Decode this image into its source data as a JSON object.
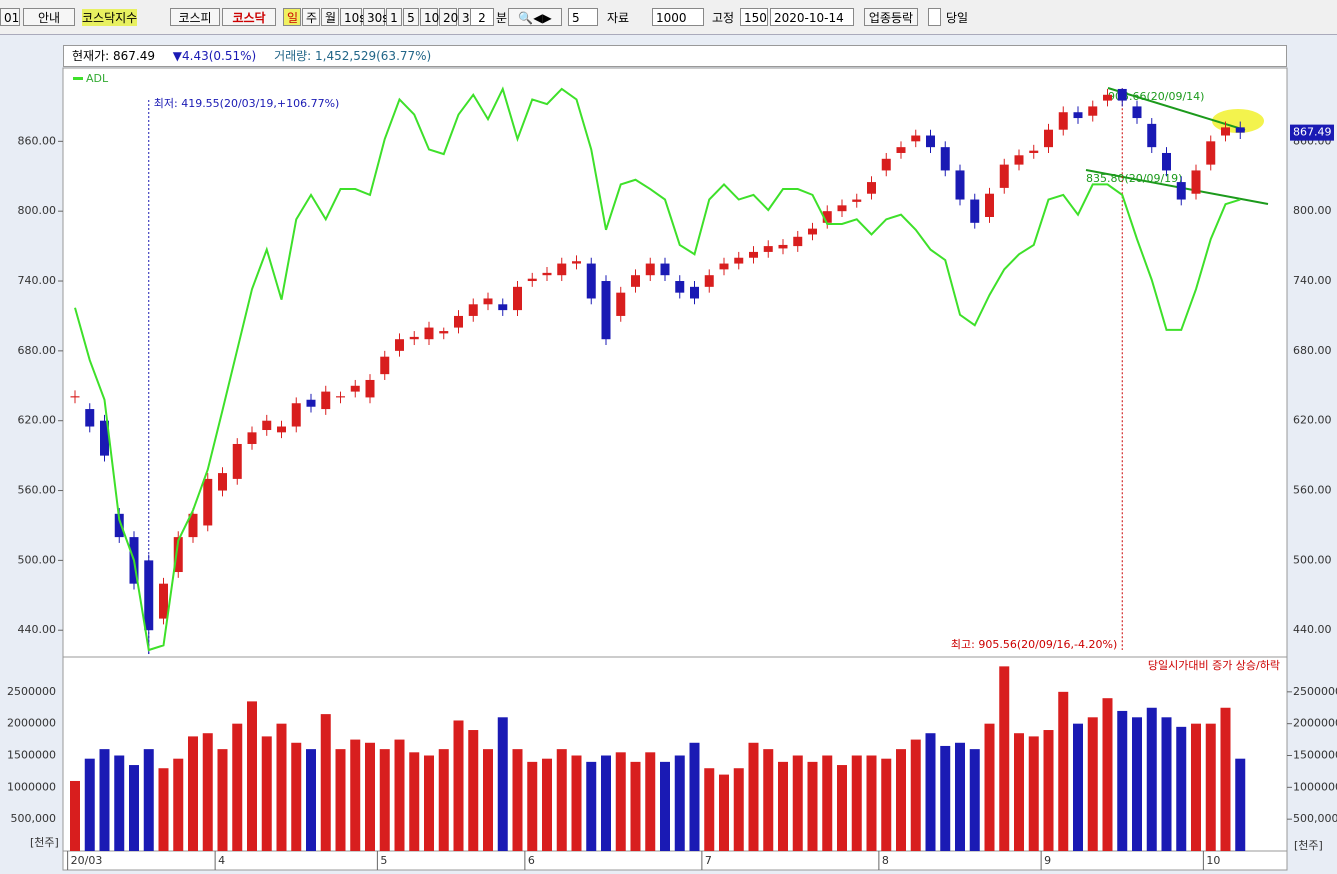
{
  "toolbar": {
    "code": "01",
    "guide": "안내",
    "index_name": "코스닥지수",
    "tabs": [
      "코스피",
      "코스닥"
    ],
    "periods": [
      "일",
      "주",
      "월",
      "10s",
      "30s",
      "1",
      "5",
      "10",
      "20",
      "30"
    ],
    "minute_value": "2",
    "minute_unit": "분",
    "count_value": "5",
    "data_label": "자료",
    "data_value": "1000",
    "fixed_label": "고정",
    "fixed_value": "150",
    "date": "2020-10-14",
    "sector_button": "업종등락",
    "today_label": "당일"
  },
  "header": {
    "price": "현재가: 867.49",
    "change": "▼4.43(0.51%)",
    "volume": "거래량: 1,452,529(63.77%)"
  },
  "chart_data": {
    "type": "candlestick",
    "categories": [
      "20/03",
      null,
      null,
      null,
      null,
      null,
      null,
      null,
      null,
      null,
      "4",
      null,
      null,
      null,
      null,
      null,
      null,
      null,
      null,
      null,
      null,
      "5",
      null,
      null,
      null,
      null,
      null,
      null,
      null,
      null,
      null,
      "6",
      null,
      null,
      null,
      null,
      null,
      null,
      null,
      null,
      null,
      null,
      null,
      "7",
      null,
      null,
      null,
      null,
      null,
      null,
      null,
      null,
      null,
      null,
      null,
      "8",
      null,
      null,
      null,
      null,
      null,
      null,
      null,
      null,
      null,
      null,
      "9",
      null,
      null,
      null,
      null,
      null,
      null,
      null,
      null,
      null,
      null,
      "10",
      null,
      null
    ],
    "open": [
      640,
      630,
      620,
      540,
      520,
      500,
      450,
      490,
      520,
      530,
      560,
      570,
      600,
      612,
      610,
      615,
      638,
      630,
      640,
      645,
      640,
      660,
      680,
      690,
      690,
      695,
      700,
      710,
      720,
      720,
      715,
      740,
      745,
      745,
      755,
      755,
      740,
      710,
      735,
      745,
      755,
      740,
      735,
      735,
      750,
      755,
      760,
      765,
      768,
      770,
      780,
      790,
      800,
      808,
      815,
      835,
      850,
      860,
      865,
      855,
      835,
      810,
      795,
      820,
      840,
      850,
      855,
      870,
      885,
      882,
      895,
      905,
      890,
      875,
      850,
      825,
      815,
      840,
      865,
      872
    ],
    "high": [
      646,
      635,
      625,
      545,
      525,
      505,
      485,
      525,
      545,
      575,
      580,
      605,
      615,
      625,
      620,
      640,
      643,
      650,
      645,
      655,
      660,
      680,
      695,
      697,
      705,
      700,
      715,
      725,
      730,
      725,
      740,
      747,
      752,
      760,
      762,
      760,
      745,
      735,
      750,
      760,
      760,
      745,
      740,
      750,
      760,
      765,
      770,
      775,
      776,
      783,
      790,
      805,
      810,
      815,
      830,
      850,
      860,
      870,
      870,
      860,
      840,
      815,
      820,
      845,
      853,
      857,
      875,
      890,
      890,
      895,
      905,
      905.56,
      895,
      880,
      855,
      830,
      840,
      865,
      877,
      877
    ],
    "low": [
      635,
      610,
      585,
      515,
      475,
      419.55,
      445,
      485,
      515,
      525,
      555,
      565,
      595,
      607,
      605,
      610,
      627,
      625,
      635,
      640,
      635,
      655,
      675,
      685,
      685,
      690,
      695,
      705,
      715,
      710,
      710,
      735,
      740,
      740,
      750,
      720,
      685,
      705,
      730,
      740,
      740,
      725,
      720,
      730,
      745,
      750,
      755,
      760,
      763,
      765,
      775,
      785,
      795,
      803,
      810,
      830,
      845,
      855,
      850,
      830,
      805,
      785,
      790,
      815,
      835,
      845,
      850,
      865,
      875,
      877,
      890,
      890,
      875,
      850,
      830,
      805,
      810,
      835,
      860,
      862
    ],
    "close": [
      641,
      615,
      590,
      520,
      480,
      440,
      480,
      520,
      540,
      570,
      575,
      600,
      610,
      620,
      615,
      635,
      632,
      645,
      641,
      650,
      655,
      675,
      690,
      692,
      700,
      697,
      710,
      720,
      725,
      715,
      735,
      742,
      747,
      755,
      757,
      725,
      690,
      730,
      745,
      755,
      745,
      730,
      725,
      745,
      755,
      760,
      765,
      770,
      771,
      778,
      785,
      800,
      805,
      810,
      825,
      845,
      855,
      865,
      855,
      835,
      810,
      790,
      815,
      840,
      848,
      852,
      870,
      885,
      880,
      890,
      900,
      895,
      880,
      855,
      835,
      810,
      835,
      860,
      872,
      867.49
    ],
    "up_color": "#d81e1e",
    "down_color": "#1a1ab4",
    "ylim": [
      417,
      923
    ],
    "yticks": [
      {
        "value": 440,
        "label": "440.00"
      },
      {
        "value": 500,
        "label": "500.00"
      },
      {
        "value": 560,
        "label": "560.00"
      },
      {
        "value": 620,
        "label": "620.00"
      },
      {
        "value": 680,
        "label": "680.00"
      },
      {
        "value": 740,
        "label": "740.00"
      },
      {
        "value": 800,
        "label": "800.00"
      },
      {
        "value": 860,
        "label": "860.00"
      }
    ],
    "series": [
      {
        "name": "ADL",
        "color": "#3ee02a",
        "values": [
          717,
          672,
          638,
          535,
          500,
          423,
          427,
          517,
          543,
          578,
          629,
          681,
          733,
          767,
          724,
          793,
          814,
          793,
          819,
          819,
          814,
          862,
          896,
          883,
          853,
          849,
          883,
          900,
          879,
          905,
          862,
          896,
          892,
          905,
          896,
          853,
          784,
          823,
          827,
          819,
          810,
          771,
          763,
          810,
          823,
          810,
          814,
          801,
          819,
          819,
          814,
          789,
          789,
          793,
          780,
          793,
          797,
          784,
          767,
          758,
          711,
          702,
          728,
          750,
          763,
          771,
          810,
          814,
          797,
          823,
          823,
          814,
          776,
          741,
          698,
          698,
          733,
          776,
          806,
          810
        ]
      }
    ],
    "volume": {
      "values": [
        1100000,
        1450000,
        1600000,
        1500000,
        1350000,
        1600000,
        1300000,
        1450000,
        1800000,
        1850000,
        1600000,
        2000000,
        2350000,
        1800000,
        2000000,
        1700000,
        1600000,
        2150000,
        1600000,
        1750000,
        1700000,
        1600000,
        1750000,
        1550000,
        1500000,
        1600000,
        2050000,
        1900000,
        1600000,
        2100000,
        1600000,
        1400000,
        1450000,
        1600000,
        1500000,
        1400000,
        1500000,
        1550000,
        1400000,
        1550000,
        1400000,
        1500000,
        1700000,
        1300000,
        1200000,
        1300000,
        1700000,
        1600000,
        1400000,
        1500000,
        1400000,
        1500000,
        1350000,
        1500000,
        1500000,
        1450000,
        1600000,
        1750000,
        1850000,
        1650000,
        1700000,
        1600000,
        2000000,
        2900000,
        1850000,
        1800000,
        1900000,
        2500000,
        2000000,
        2100000,
        2400000,
        2200000,
        2100000,
        2250000,
        2100000,
        1950000,
        2000000,
        2000000,
        2250000,
        1450000
      ],
      "ylim": [
        0,
        3000000
      ],
      "yticks": [
        {
          "value": 500000,
          "label": "500,000"
        },
        1000000,
        1500000,
        2000000,
        2500000
      ],
      "unit": "[천주]",
      "note": "당일시가대비 증가 상승/하락"
    },
    "low_label": "최저: 419.55(20/03/19,+106.77%)",
    "high_label": "최고: 905.56(20/09/16,-4.20%)",
    "annotations": [
      "905.66(20/09/14)",
      "835.80(20/09/19)"
    ]
  }
}
